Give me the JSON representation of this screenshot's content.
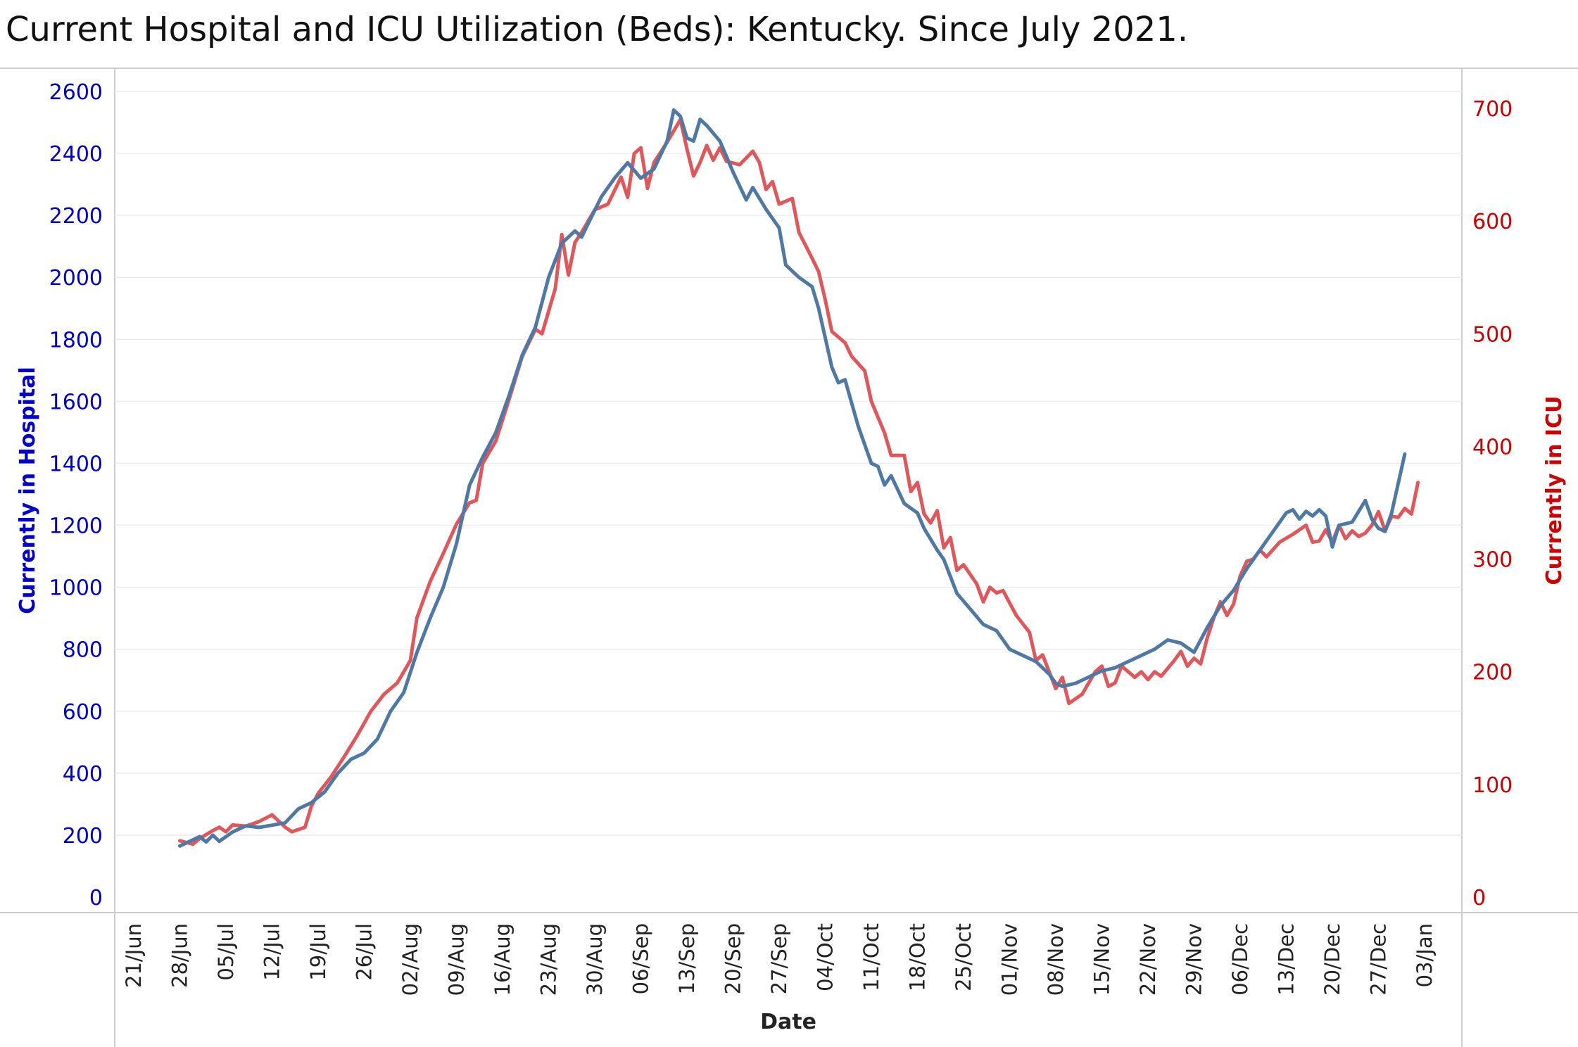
{
  "title": "Current Hospital and ICU Utilization (Beds):  Kentucky. Since July 2021.",
  "chart_data": {
    "type": "line",
    "title": "Current Hospital and ICU Utilization (Beds):  Kentucky. Since July 2021.",
    "xlabel": "Date",
    "ylabel_left": "Currently in Hospital",
    "ylabel_right": "Currently in ICU",
    "ylim_left": [
      0,
      2600
    ],
    "ylim_right": [
      0,
      700
    ],
    "yticks_left": [
      0,
      200,
      400,
      600,
      800,
      1000,
      1200,
      1400,
      1600,
      1800,
      2000,
      2200,
      2400,
      2600
    ],
    "yticks_right": [
      0,
      100,
      200,
      300,
      400,
      500,
      600,
      700
    ],
    "xticks": [
      "21/Jun",
      "28/Jun",
      "05/Jul",
      "12/Jul",
      "19/Jul",
      "26/Jul",
      "02/Aug",
      "09/Aug",
      "16/Aug",
      "23/Aug",
      "30/Aug",
      "06/Sep",
      "13/Sep",
      "20/Sep",
      "27/Sep",
      "04/Oct",
      "11/Oct",
      "18/Oct",
      "25/Oct",
      "01/Nov",
      "08/Nov",
      "15/Nov",
      "22/Nov",
      "29/Nov",
      "06/Dec",
      "13/Dec",
      "20/Dec",
      "27/Dec",
      "03/Jan"
    ],
    "grid": "horizontal",
    "colors": {
      "hospital": "#4e79a7",
      "icu": "#e15759",
      "left_axis": "#0000cc",
      "right_axis": "#cc0000"
    },
    "series": [
      {
        "name": "Currently in Hospital",
        "axis": "left",
        "points": [
          [
            "2021-06-28",
            165
          ],
          [
            "2021-07-01",
            195
          ],
          [
            "2021-07-02",
            178
          ],
          [
            "2021-07-03",
            200
          ],
          [
            "2021-07-04",
            180
          ],
          [
            "2021-07-06",
            210
          ],
          [
            "2021-07-08",
            230
          ],
          [
            "2021-07-10",
            225
          ],
          [
            "2021-07-12",
            232
          ],
          [
            "2021-07-14",
            240
          ],
          [
            "2021-07-16",
            285
          ],
          [
            "2021-07-18",
            305
          ],
          [
            "2021-07-20",
            340
          ],
          [
            "2021-07-22",
            400
          ],
          [
            "2021-07-24",
            445
          ],
          [
            "2021-07-26",
            465
          ],
          [
            "2021-07-28",
            510
          ],
          [
            "2021-07-30",
            600
          ],
          [
            "2021-08-01",
            660
          ],
          [
            "2021-08-03",
            790
          ],
          [
            "2021-08-05",
            900
          ],
          [
            "2021-08-07",
            1000
          ],
          [
            "2021-08-09",
            1140
          ],
          [
            "2021-08-11",
            1330
          ],
          [
            "2021-08-13",
            1420
          ],
          [
            "2021-08-15",
            1500
          ],
          [
            "2021-08-17",
            1620
          ],
          [
            "2021-08-19",
            1750
          ],
          [
            "2021-08-21",
            1840
          ],
          [
            "2021-08-23",
            2000
          ],
          [
            "2021-08-25",
            2110
          ],
          [
            "2021-08-27",
            2150
          ],
          [
            "2021-08-28",
            2130
          ],
          [
            "2021-08-31",
            2260
          ],
          [
            "2021-09-02",
            2320
          ],
          [
            "2021-09-04",
            2370
          ],
          [
            "2021-09-06",
            2320
          ],
          [
            "2021-09-08",
            2350
          ],
          [
            "2021-09-10",
            2440
          ],
          [
            "2021-09-11",
            2540
          ],
          [
            "2021-09-12",
            2520
          ],
          [
            "2021-09-13",
            2450
          ],
          [
            "2021-09-14",
            2440
          ],
          [
            "2021-09-15",
            2510
          ],
          [
            "2021-09-16",
            2490
          ],
          [
            "2021-09-18",
            2440
          ],
          [
            "2021-09-20",
            2340
          ],
          [
            "2021-09-22",
            2250
          ],
          [
            "2021-09-23",
            2290
          ],
          [
            "2021-09-25",
            2220
          ],
          [
            "2021-09-27",
            2160
          ],
          [
            "2021-09-28",
            2040
          ],
          [
            "2021-09-30",
            2000
          ],
          [
            "2021-10-02",
            1970
          ],
          [
            "2021-10-03",
            1900
          ],
          [
            "2021-10-05",
            1710
          ],
          [
            "2021-10-06",
            1660
          ],
          [
            "2021-10-07",
            1670
          ],
          [
            "2021-10-09",
            1520
          ],
          [
            "2021-10-11",
            1400
          ],
          [
            "2021-10-12",
            1390
          ],
          [
            "2021-10-13",
            1330
          ],
          [
            "2021-10-14",
            1360
          ],
          [
            "2021-10-16",
            1270
          ],
          [
            "2021-10-18",
            1240
          ],
          [
            "2021-10-19",
            1190
          ],
          [
            "2021-10-21",
            1120
          ],
          [
            "2021-10-22",
            1090
          ],
          [
            "2021-10-24",
            980
          ],
          [
            "2021-10-26",
            930
          ],
          [
            "2021-10-28",
            880
          ],
          [
            "2021-10-30",
            860
          ],
          [
            "2021-11-01",
            800
          ],
          [
            "2021-11-03",
            780
          ],
          [
            "2021-11-05",
            760
          ],
          [
            "2021-11-07",
            720
          ],
          [
            "2021-11-08",
            690
          ],
          [
            "2021-11-09",
            680
          ],
          [
            "2021-11-11",
            690
          ],
          [
            "2021-11-13",
            710
          ],
          [
            "2021-11-15",
            730
          ],
          [
            "2021-11-17",
            740
          ],
          [
            "2021-11-19",
            760
          ],
          [
            "2021-11-21",
            780
          ],
          [
            "2021-11-23",
            800
          ],
          [
            "2021-11-25",
            830
          ],
          [
            "2021-11-27",
            820
          ],
          [
            "2021-11-29",
            790
          ],
          [
            "2021-12-01",
            870
          ],
          [
            "2021-12-03",
            940
          ],
          [
            "2021-12-05",
            990
          ],
          [
            "2021-12-07",
            1060
          ],
          [
            "2021-12-09",
            1120
          ],
          [
            "2021-12-11",
            1180
          ],
          [
            "2021-12-13",
            1240
          ],
          [
            "2021-12-14",
            1250
          ],
          [
            "2021-12-15",
            1220
          ],
          [
            "2021-12-16",
            1245
          ],
          [
            "2021-12-17",
            1230
          ],
          [
            "2021-12-18",
            1250
          ],
          [
            "2021-12-19",
            1230
          ],
          [
            "2021-12-20",
            1130
          ],
          [
            "2021-12-21",
            1200
          ],
          [
            "2021-12-23",
            1210
          ],
          [
            "2021-12-25",
            1280
          ],
          [
            "2021-12-26",
            1220
          ],
          [
            "2021-12-27",
            1190
          ],
          [
            "2021-12-28",
            1180
          ],
          [
            "2021-12-29",
            1240
          ],
          [
            "2021-12-31",
            1430
          ]
        ]
      },
      {
        "name": "Currently in ICU",
        "axis": "right",
        "points": [
          [
            "2021-06-28",
            50
          ],
          [
            "2021-06-30",
            47
          ],
          [
            "2021-07-01",
            52
          ],
          [
            "2021-07-03",
            59
          ],
          [
            "2021-07-04",
            62
          ],
          [
            "2021-07-05",
            58
          ],
          [
            "2021-07-06",
            64
          ],
          [
            "2021-07-08",
            63
          ],
          [
            "2021-07-10",
            67
          ],
          [
            "2021-07-12",
            73
          ],
          [
            "2021-07-14",
            62
          ],
          [
            "2021-07-15",
            58
          ],
          [
            "2021-07-17",
            62
          ],
          [
            "2021-07-18",
            81
          ],
          [
            "2021-07-19",
            92
          ],
          [
            "2021-07-21",
            107
          ],
          [
            "2021-07-23",
            125
          ],
          [
            "2021-07-25",
            144
          ],
          [
            "2021-07-27",
            165
          ],
          [
            "2021-07-29",
            180
          ],
          [
            "2021-07-31",
            190
          ],
          [
            "2021-08-02",
            210
          ],
          [
            "2021-08-03",
            248
          ],
          [
            "2021-08-05",
            280
          ],
          [
            "2021-08-07",
            305
          ],
          [
            "2021-08-09",
            331
          ],
          [
            "2021-08-11",
            350
          ],
          [
            "2021-08-12",
            352
          ],
          [
            "2021-08-13",
            385
          ],
          [
            "2021-08-15",
            405
          ],
          [
            "2021-08-17",
            442
          ],
          [
            "2021-08-19",
            480
          ],
          [
            "2021-08-21",
            504
          ],
          [
            "2021-08-22",
            500
          ],
          [
            "2021-08-24",
            540
          ],
          [
            "2021-08-25",
            588
          ],
          [
            "2021-08-26",
            552
          ],
          [
            "2021-08-27",
            581
          ],
          [
            "2021-08-28",
            590
          ],
          [
            "2021-08-30",
            610
          ],
          [
            "2021-09-01",
            615
          ],
          [
            "2021-09-03",
            639
          ],
          [
            "2021-09-04",
            621
          ],
          [
            "2021-09-05",
            660
          ],
          [
            "2021-09-06",
            665
          ],
          [
            "2021-09-07",
            629
          ],
          [
            "2021-09-08",
            652
          ],
          [
            "2021-09-09",
            661
          ],
          [
            "2021-09-10",
            670
          ],
          [
            "2021-09-11",
            680
          ],
          [
            "2021-09-12",
            690
          ],
          [
            "2021-09-13",
            664
          ],
          [
            "2021-09-14",
            640
          ],
          [
            "2021-09-15",
            652
          ],
          [
            "2021-09-16",
            667
          ],
          [
            "2021-09-17",
            654
          ],
          [
            "2021-09-18",
            665
          ],
          [
            "2021-09-19",
            653
          ],
          [
            "2021-09-21",
            650
          ],
          [
            "2021-09-23",
            662
          ],
          [
            "2021-09-24",
            652
          ],
          [
            "2021-09-25",
            628
          ],
          [
            "2021-09-26",
            635
          ],
          [
            "2021-09-27",
            615
          ],
          [
            "2021-09-29",
            620
          ],
          [
            "2021-09-30",
            590
          ],
          [
            "2021-10-02",
            567
          ],
          [
            "2021-10-03",
            555
          ],
          [
            "2021-10-04",
            530
          ],
          [
            "2021-10-05",
            502
          ],
          [
            "2021-10-07",
            492
          ],
          [
            "2021-10-08",
            480
          ],
          [
            "2021-10-10",
            467
          ],
          [
            "2021-10-11",
            440
          ],
          [
            "2021-10-13",
            412
          ],
          [
            "2021-10-14",
            392
          ],
          [
            "2021-10-16",
            392
          ],
          [
            "2021-10-17",
            360
          ],
          [
            "2021-10-18",
            368
          ],
          [
            "2021-10-19",
            340
          ],
          [
            "2021-10-20",
            332
          ],
          [
            "2021-10-21",
            343
          ],
          [
            "2021-10-22",
            310
          ],
          [
            "2021-10-23",
            319
          ],
          [
            "2021-10-24",
            290
          ],
          [
            "2021-10-25",
            295
          ],
          [
            "2021-10-27",
            278
          ],
          [
            "2021-10-28",
            262
          ],
          [
            "2021-10-29",
            275
          ],
          [
            "2021-10-30",
            270
          ],
          [
            "2021-10-31",
            272
          ],
          [
            "2021-11-02",
            250
          ],
          [
            "2021-11-04",
            235
          ],
          [
            "2021-11-05",
            210
          ],
          [
            "2021-11-06",
            215
          ],
          [
            "2021-11-08",
            185
          ],
          [
            "2021-11-09",
            195
          ],
          [
            "2021-11-10",
            172
          ],
          [
            "2021-11-12",
            180
          ],
          [
            "2021-11-14",
            200
          ],
          [
            "2021-11-15",
            205
          ],
          [
            "2021-11-16",
            187
          ],
          [
            "2021-11-17",
            190
          ],
          [
            "2021-11-18",
            205
          ],
          [
            "2021-11-20",
            195
          ],
          [
            "2021-11-21",
            200
          ],
          [
            "2021-11-22",
            193
          ],
          [
            "2021-11-23",
            200
          ],
          [
            "2021-11-24",
            196
          ],
          [
            "2021-11-26",
            210
          ],
          [
            "2021-11-27",
            218
          ],
          [
            "2021-11-28",
            205
          ],
          [
            "2021-11-29",
            212
          ],
          [
            "2021-11-30",
            207
          ],
          [
            "2021-12-01",
            230
          ],
          [
            "2021-12-02",
            248
          ],
          [
            "2021-12-03",
            262
          ],
          [
            "2021-12-04",
            250
          ],
          [
            "2021-12-05",
            260
          ],
          [
            "2021-12-06",
            285
          ],
          [
            "2021-12-07",
            298
          ],
          [
            "2021-12-08",
            300
          ],
          [
            "2021-12-09",
            308
          ],
          [
            "2021-12-10",
            302
          ],
          [
            "2021-12-12",
            315
          ],
          [
            "2021-12-14",
            322
          ],
          [
            "2021-12-16",
            330
          ],
          [
            "2021-12-17",
            315
          ],
          [
            "2021-12-18",
            316
          ],
          [
            "2021-12-19",
            326
          ],
          [
            "2021-12-20",
            315
          ],
          [
            "2021-12-21",
            330
          ],
          [
            "2021-12-22",
            318
          ],
          [
            "2021-12-23",
            325
          ],
          [
            "2021-12-24",
            320
          ],
          [
            "2021-12-25",
            323
          ],
          [
            "2021-12-26",
            330
          ],
          [
            "2021-12-27",
            342
          ],
          [
            "2021-12-28",
            325
          ],
          [
            "2021-12-29",
            338
          ],
          [
            "2021-12-30",
            337
          ],
          [
            "2021-12-31",
            345
          ],
          [
            "2022-01-01",
            340
          ],
          [
            "2022-01-02",
            368
          ]
        ]
      }
    ]
  }
}
